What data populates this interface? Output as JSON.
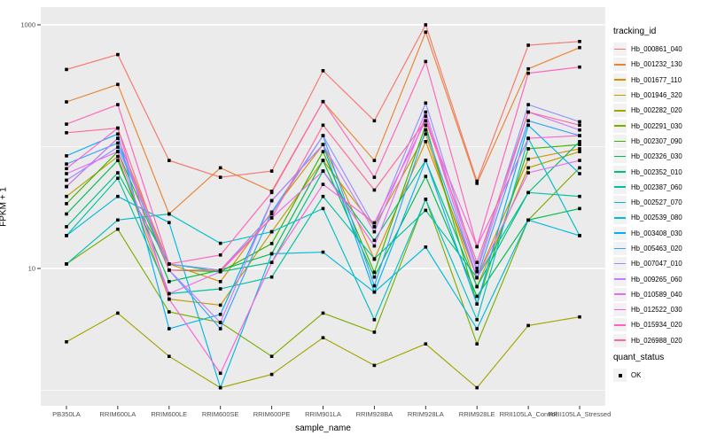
{
  "y_axis": {
    "label": "FPKM + 1",
    "tick_labels": [
      "1000",
      "10"
    ]
  },
  "x_axis": {
    "label": "sample_name"
  },
  "legends": {
    "tracking": {
      "title": "tracking_id"
    },
    "quant": {
      "title": "quant_status",
      "items": [
        {
          "label": "OK",
          "marker": "black-square"
        }
      ]
    }
  },
  "chart_data": {
    "type": "line",
    "title": "",
    "xlabel": "sample_name",
    "ylabel": "FPKM + 1",
    "y_scale": "log10",
    "y_ticks": [
      10,
      1000
    ],
    "ylim_fpkm_plus1": [
      0.75,
      1400
    ],
    "grid": "white major gridlines at 10 and 1000, minor at 1 and 100, on grey panel",
    "legend_position": "right",
    "panel_color": "#EBEBEB",
    "point_marker": "black square (quant_status = OK at every point)",
    "categories": [
      "PB350LA",
      "RRIM600LA",
      "RRIM600LE",
      "RRIM600SE",
      "RRIM600PE",
      "RRIM901LA",
      "RRIM928BA",
      "RRIM928LA",
      "RRIM928LE",
      "RRII105LA_Control",
      "RRII105LA_Stressed"
    ],
    "series": [
      {
        "name": "Hb_000861_040",
        "color": "#F8766D",
        "values": [
          430,
          570,
          77,
          56,
          63,
          420,
          163,
          1000,
          52,
          680,
          730
        ]
      },
      {
        "name": "Hb_001232_130",
        "color": "#EA8331",
        "values": [
          233,
          324,
          28,
          67,
          43,
          234,
          77,
          870,
          50,
          435,
          650
        ]
      },
      {
        "name": "Hb_001677_110",
        "color": "#D89000",
        "values": [
          47,
          117,
          10.9,
          7.8,
          29,
          104,
          11.9,
          110,
          8.4,
          79,
          96
        ]
      },
      {
        "name": "Hb_001946_320",
        "color": "#C09B00",
        "values": [
          39,
          83,
          5.6,
          5.0,
          20,
          77,
          22,
          127,
          7.1,
          67,
          91
        ]
      },
      {
        "name": "Hb_002282_020",
        "color": "#A3A500",
        "values": [
          2.5,
          4.3,
          1.9,
          1.05,
          1.35,
          2.7,
          1.6,
          2.4,
          1.05,
          3.4,
          4.0
        ]
      },
      {
        "name": "Hb_002291_030",
        "color": "#7CAE00",
        "values": [
          10.9,
          21,
          4.4,
          3.6,
          1.9,
          4.3,
          3.0,
          37,
          2.4,
          25,
          67
        ]
      },
      {
        "name": "Hb_002307_090",
        "color": "#39B600",
        "values": [
          34,
          91,
          9.7,
          9.4,
          16,
          91,
          9.3,
          150,
          5.1,
          96,
          104
        ]
      },
      {
        "name": "Hb_002326_030",
        "color": "#00BB4E",
        "values": [
          28,
          77,
          7.8,
          9.7,
          13.2,
          77,
          8.5,
          57,
          5.9,
          25,
          31
        ]
      },
      {
        "name": "Hb_002352_010",
        "color": "#00BF7D",
        "values": [
          22,
          61,
          10.9,
          9.4,
          11.2,
          63,
          17,
          77,
          7.1,
          42,
          110
        ]
      },
      {
        "name": "Hb_002387_060",
        "color": "#00C1A3",
        "values": [
          18.6,
          55,
          6.2,
          6.8,
          8.5,
          39,
          12,
          30,
          8.4,
          42,
          39
        ]
      },
      {
        "name": "Hb_002527_070",
        "color": "#00BFC4",
        "values": [
          10.9,
          25,
          28,
          16.1,
          20,
          31,
          3.8,
          37,
          3.8,
          117,
          18.6
        ]
      },
      {
        "name": "Hb_002539_080",
        "color": "#00BAE0",
        "values": [
          18.6,
          39,
          23.8,
          1.05,
          13.2,
          13.6,
          6.4,
          15,
          3.2,
          25,
          18.6
        ]
      },
      {
        "name": "Hb_003408_030",
        "color": "#00B0F6",
        "values": [
          84,
          127,
          3.2,
          4.2,
          36,
          104,
          6.4,
          77,
          5.1,
          150,
          60
        ]
      },
      {
        "name": "Hb_005463_020",
        "color": "#35A2FF",
        "values": [
          72,
          107,
          9.7,
          3.2,
          29,
          123,
          7.2,
          137,
          8.4,
          163,
          123
        ]
      },
      {
        "name": "Hb_007047_010",
        "color": "#9590FF",
        "values": [
          53,
          99,
          10.9,
          9.7,
          28,
          123,
          22,
          228,
          10,
          221,
          160
        ]
      },
      {
        "name": "Hb_009265_060",
        "color": "#C77CFF",
        "values": [
          47,
          117,
          9.7,
          3.6,
          36,
          104,
          20,
          192,
          9.4,
          192,
          137
        ]
      },
      {
        "name": "Hb_010589_040",
        "color": "#E76BF3",
        "values": [
          60,
          91,
          6.2,
          9.4,
          26,
          63,
          15.3,
          178,
          8.4,
          61,
          77
        ]
      },
      {
        "name": "Hb_012522_030",
        "color": "#FA62DB",
        "values": [
          66,
          142,
          5.6,
          1.38,
          11.2,
          49,
          23.7,
          163,
          15.1,
          117,
          123
        ]
      },
      {
        "name": "Hb_015934_020",
        "color": "#FF62BC",
        "values": [
          153,
          221,
          10.9,
          12.9,
          42,
          234,
          56,
          500,
          15.1,
          400,
          450
        ]
      },
      {
        "name": "Hb_026988_020",
        "color": "#FF6A98",
        "values": [
          130,
          142,
          9.7,
          9.7,
          26,
          150,
          44,
          163,
          11.2,
          192,
          150
        ]
      }
    ]
  }
}
